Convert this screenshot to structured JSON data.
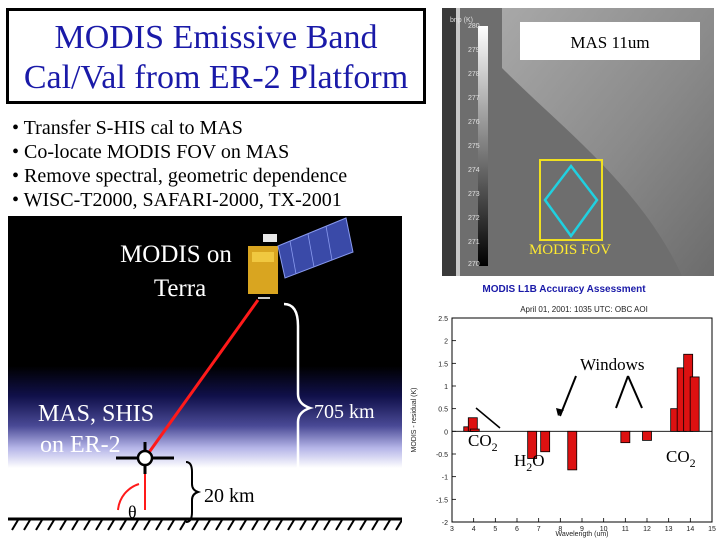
{
  "title": {
    "line1": "MODIS Emissive Band",
    "line2": "Cal/Val from ER-2 Platform"
  },
  "bullets": [
    "• Transfer S-HIS cal to MAS",
    "• Co-locate MODIS FOV on MAS",
    "• Remove spectral, geometric dependence",
    "• WISC-T2000, SAFARI-2000, TX-2001"
  ],
  "mas_image": {
    "label": "MAS 11um",
    "fov_label": "MODIS FOV",
    "colorbar_header": "bnp (K)",
    "colorbar_ticks": [
      "280",
      "279",
      "278",
      "277",
      "276",
      "275",
      "274",
      "273",
      "272",
      "271",
      "270"
    ]
  },
  "scene": {
    "satellite_label_line1": "MODIS on",
    "satellite_label_line2": "Terra",
    "aircraft_label_line1": "MAS, SHIS",
    "aircraft_label_line2": "on ER-2",
    "altitude_label": "705 km",
    "aircraft_altitude_label": "20 km",
    "angle_label": "θ"
  },
  "chart_annotations": {
    "windows": "Windows",
    "co2_left": "CO",
    "co2_left_sub": "2",
    "h2o": "H",
    "h2o_sub": "2",
    "h2o_tail": "O",
    "co2_right": "CO",
    "co2_right_sub": "2"
  },
  "chart_data": {
    "type": "bar",
    "title": "MODIS L1B Accuracy Assessment",
    "subtitle": "April 01, 2001: 1035 UTC: OBC AOI",
    "xlabel": "Wavelength (um)",
    "ylabel": "MODIS - residual (K)",
    "xlim": [
      3,
      15
    ],
    "ylim": [
      -2,
      2.5
    ],
    "x_ticks": [
      "3",
      "4",
      "5",
      "6",
      "7",
      "8",
      "9",
      "10",
      "11",
      "12",
      "13",
      "14",
      "15"
    ],
    "y_ticks": [
      "2.5",
      "2",
      "1.5",
      "1",
      "0.5",
      "0",
      "-0.5",
      "-1",
      "-1.5",
      "-2"
    ],
    "bar_color": "#dd1111",
    "bars": [
      {
        "x": 3.75,
        "value": 0.1
      },
      {
        "x": 3.96,
        "value": 0.3
      },
      {
        "x": 4.05,
        "value": 0.05
      },
      {
        "x": 6.7,
        "value": -0.6
      },
      {
        "x": 7.3,
        "value": -0.45
      },
      {
        "x": 8.55,
        "value": -0.85
      },
      {
        "x": 11.0,
        "value": -0.25
      },
      {
        "x": 12.0,
        "value": -0.2
      },
      {
        "x": 13.3,
        "value": 0.5
      },
      {
        "x": 13.6,
        "value": 1.4
      },
      {
        "x": 13.9,
        "value": 1.7
      },
      {
        "x": 14.2,
        "value": 1.2
      }
    ]
  }
}
